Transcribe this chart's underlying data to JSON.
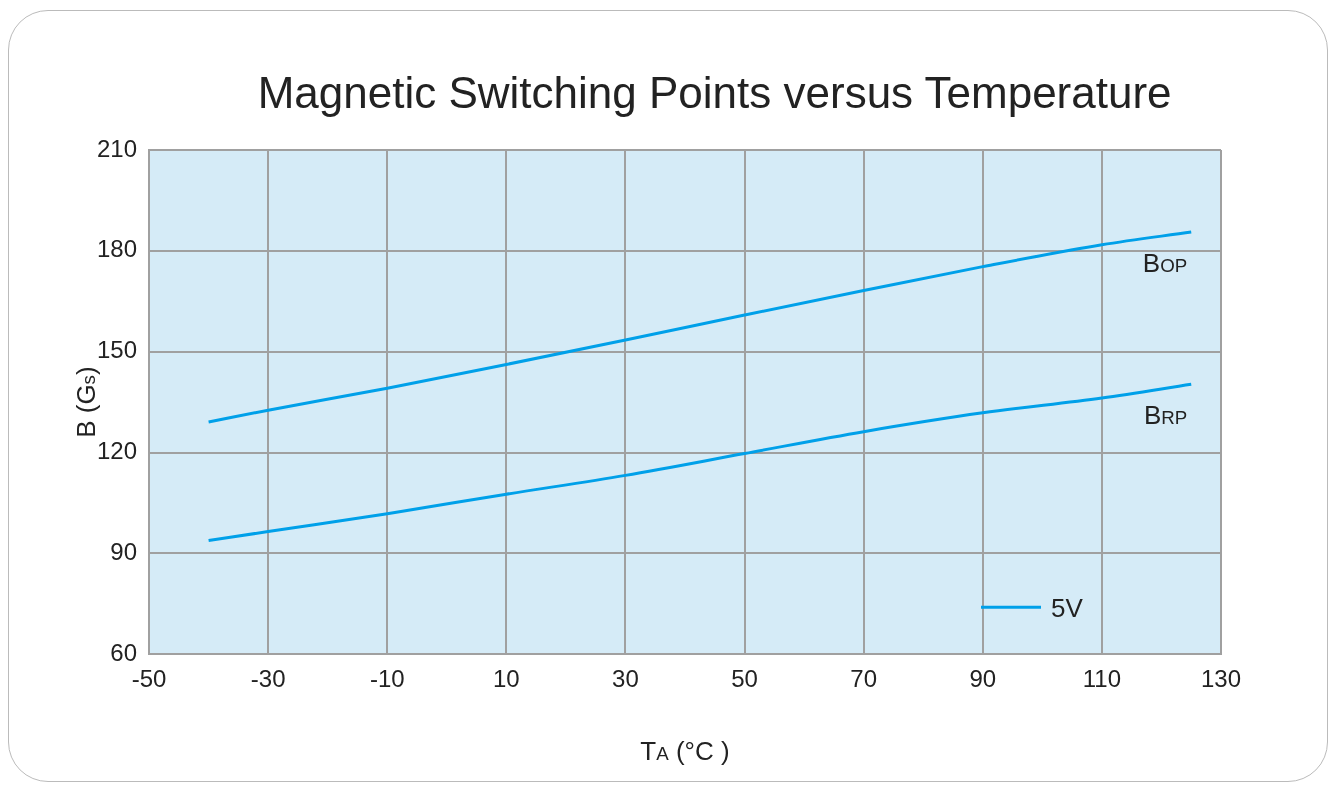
{
  "chart_data": {
    "type": "line",
    "title": "Magnetic Switching Points versus Temperature",
    "xlabel": "T$_{A}$ (°C )",
    "ylabel": "B (G$_{s}$)",
    "legend_title": "5V",
    "grid": true,
    "marker": "none",
    "line_style": "solid",
    "x": [
      -40,
      -30,
      -10,
      10,
      30,
      50,
      70,
      90,
      110,
      125
    ],
    "series": [
      {
        "name": "B$_{OP}$",
        "color": "#00a0e9",
        "values": [
          129.1,
          132.6,
          139.1,
          146.2,
          153.5,
          160.9,
          168.2,
          175.3,
          181.8,
          185.6
        ]
      },
      {
        "name": "B$_{RP}$",
        "color": "#00a0e9",
        "values": [
          93.8,
          96.5,
          101.8,
          107.6,
          113.2,
          119.7,
          126.2,
          131.8,
          136.2,
          140.3
        ]
      }
    ],
    "xlim": [
      -50,
      130
    ],
    "xticks": [
      -50,
      -30,
      -10,
      10,
      30,
      50,
      70,
      90,
      110,
      130
    ],
    "ylim": [
      60,
      210
    ],
    "yticks": [
      60,
      90,
      120,
      150,
      180,
      210
    ]
  }
}
